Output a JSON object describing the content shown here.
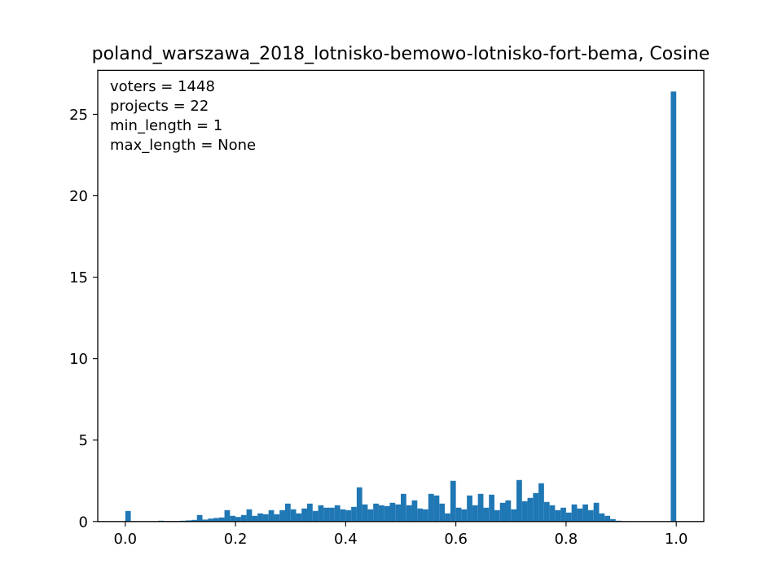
{
  "chart_data": {
    "type": "bar",
    "title": "poland_warszawa_2018_lotnisko-bemowo-lotnisko-fort-bema, Cosine",
    "xlabel": "",
    "ylabel": "",
    "xlim": [
      -0.05,
      1.05
    ],
    "ylim": [
      0,
      27.7
    ],
    "grid": false,
    "bin_width": 0.01,
    "x_ticks": [
      {
        "value": 0.0,
        "label": "0.0"
      },
      {
        "value": 0.2,
        "label": "0.2"
      },
      {
        "value": 0.4,
        "label": "0.4"
      },
      {
        "value": 0.6,
        "label": "0.6"
      },
      {
        "value": 0.8,
        "label": "0.8"
      },
      {
        "value": 1.0,
        "label": "1.0"
      }
    ],
    "y_ticks": [
      {
        "value": 0,
        "label": "0"
      },
      {
        "value": 5,
        "label": "5"
      },
      {
        "value": 10,
        "label": "10"
      },
      {
        "value": 15,
        "label": "15"
      },
      {
        "value": 20,
        "label": "20"
      },
      {
        "value": 25,
        "label": "25"
      }
    ],
    "annotations": [
      "voters = 1448",
      "projects = 22",
      "min_length = 1",
      "max_length = None"
    ],
    "bar_color": "#1f77b4",
    "x": [
      0.0,
      0.01,
      0.02,
      0.03,
      0.04,
      0.05,
      0.06,
      0.07,
      0.08,
      0.09,
      0.1,
      0.11,
      0.12,
      0.13,
      0.14,
      0.15,
      0.16,
      0.17,
      0.18,
      0.19,
      0.2,
      0.21,
      0.22,
      0.23,
      0.24,
      0.25,
      0.26,
      0.27,
      0.28,
      0.29,
      0.3,
      0.31,
      0.32,
      0.33,
      0.34,
      0.35,
      0.36,
      0.37,
      0.38,
      0.39,
      0.4,
      0.41,
      0.42,
      0.43,
      0.44,
      0.45,
      0.46,
      0.47,
      0.48,
      0.49,
      0.5,
      0.51,
      0.52,
      0.53,
      0.54,
      0.55,
      0.56,
      0.57,
      0.58,
      0.59,
      0.6,
      0.61,
      0.62,
      0.63,
      0.64,
      0.65,
      0.66,
      0.67,
      0.68,
      0.69,
      0.7,
      0.71,
      0.72,
      0.73,
      0.74,
      0.75,
      0.76,
      0.77,
      0.78,
      0.79,
      0.8,
      0.81,
      0.82,
      0.83,
      0.84,
      0.85,
      0.86,
      0.87,
      0.88,
      0.89,
      0.9,
      0.91,
      0.92,
      0.93,
      0.94,
      0.95,
      0.96,
      0.97,
      0.98,
      0.99
    ],
    "values": [
      0.65,
      0.02,
      0.02,
      0.02,
      0.02,
      0.02,
      0.05,
      0.03,
      0.03,
      0.03,
      0.05,
      0.07,
      0.1,
      0.4,
      0.12,
      0.18,
      0.22,
      0.25,
      0.7,
      0.35,
      0.28,
      0.4,
      0.75,
      0.35,
      0.5,
      0.45,
      0.7,
      0.45,
      0.7,
      1.1,
      0.75,
      0.5,
      0.8,
      1.1,
      0.65,
      1.0,
      0.85,
      0.85,
      1.0,
      0.75,
      0.7,
      0.9,
      2.1,
      1.05,
      0.75,
      1.1,
      1.0,
      0.95,
      1.15,
      1.05,
      1.7,
      1.0,
      1.3,
      0.8,
      0.75,
      1.7,
      1.6,
      1.1,
      0.5,
      2.5,
      0.85,
      0.75,
      1.6,
      1.0,
      1.7,
      0.85,
      1.65,
      0.7,
      1.15,
      1.3,
      0.75,
      2.55,
      1.25,
      1.45,
      1.75,
      2.35,
      1.2,
      1.0,
      0.7,
      0.85,
      0.55,
      1.05,
      0.8,
      1.05,
      0.7,
      1.15,
      0.5,
      0.35,
      0.15,
      0.05,
      0.02,
      0.0,
      0.0,
      0.0,
      0.0,
      0.0,
      0.0,
      0.0,
      0.0,
      26.4
    ]
  }
}
